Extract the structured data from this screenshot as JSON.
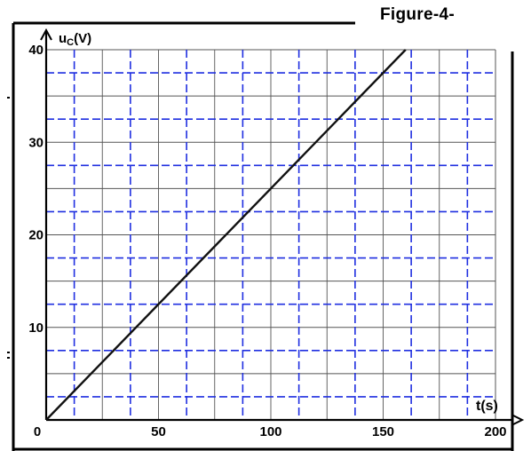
{
  "figure_label": "Figure-4-",
  "chart_data": {
    "type": "line",
    "title": "",
    "xlabel": "t(s)",
    "ylabel": "uC(V)",
    "ylabel_main": "u",
    "ylabel_sub": "C",
    "ylabel_unit": "(V)",
    "xlim": [
      0,
      200
    ],
    "ylim": [
      0,
      40
    ],
    "x_ticks": [
      0,
      50,
      100,
      150,
      200
    ],
    "y_ticks": [
      10,
      20,
      30,
      40
    ],
    "x_tick_labels": [
      "0",
      "50",
      "100",
      "150",
      "200"
    ],
    "y_tick_labels": [
      "10",
      "20",
      "30",
      "40"
    ],
    "grid": true,
    "grid_minor_color": "#555555",
    "grid_major_color": "#1f2fe0",
    "line_color": "#111111",
    "series": [
      {
        "x": [
          0,
          160
        ],
        "y": [
          0,
          40
        ]
      }
    ]
  }
}
